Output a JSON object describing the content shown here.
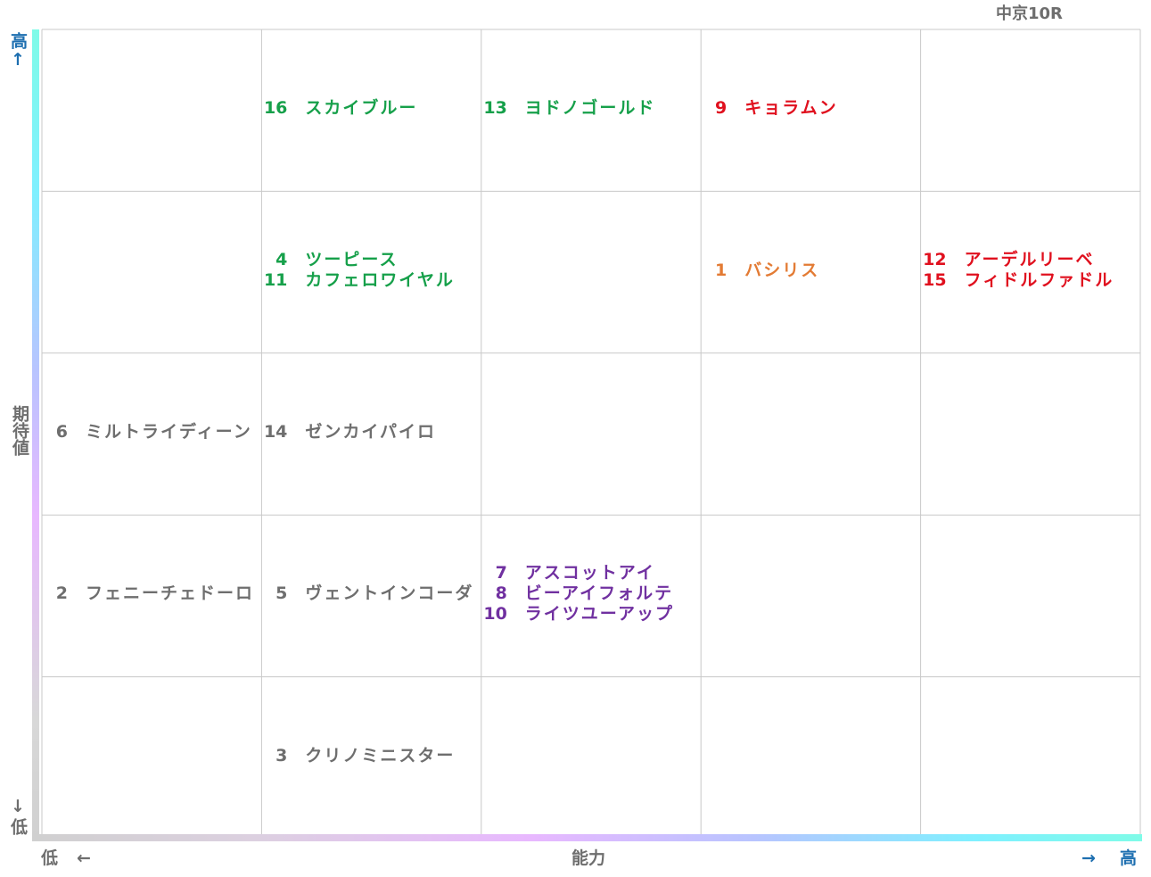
{
  "title": "中京10R",
  "y_axis": {
    "high": "高",
    "high_arrow": "↑",
    "label": "期待値",
    "low_arrow": "↓",
    "low": "低"
  },
  "x_axis": {
    "low": "低",
    "low_arrow": "←",
    "label": "能力",
    "high_arrow": "→",
    "high": "高"
  },
  "grid": {
    "rows": [
      [
        [],
        [
          {
            "number": 16,
            "name": "スカイブルー",
            "color": "#16a04a"
          }
        ],
        [
          {
            "number": 13,
            "name": "ヨドノゴールド",
            "color": "#16a04a"
          }
        ],
        [
          {
            "number": 9,
            "name": "キョラムン",
            "color": "#e0101e"
          }
        ],
        []
      ],
      [
        [],
        [
          {
            "number": 4,
            "name": "ツーピース",
            "color": "#16a04a"
          },
          {
            "number": 11,
            "name": "カフェロワイヤル",
            "color": "#16a04a"
          }
        ],
        [],
        [
          {
            "number": 1,
            "name": "バシリス",
            "color": "#e37b34"
          }
        ],
        [
          {
            "number": 12,
            "name": "アーデルリーベ",
            "color": "#e0101e"
          },
          {
            "number": 15,
            "name": "フィドルファドル",
            "color": "#e0101e"
          }
        ]
      ],
      [
        [
          {
            "number": 6,
            "name": "ミルトライディーン",
            "color": "#6e6e6e"
          }
        ],
        [
          {
            "number": 14,
            "name": "ゼンカイパイロ",
            "color": "#6e6e6e"
          }
        ],
        [],
        [],
        []
      ],
      [
        [
          {
            "number": 2,
            "name": "フェニーチェドーロ",
            "color": "#6e6e6e"
          }
        ],
        [
          {
            "number": 5,
            "name": "ヴェントインコーダ",
            "color": "#6e6e6e"
          }
        ],
        [
          {
            "number": 7,
            "name": "アスコットアイ",
            "color": "#7030a0"
          },
          {
            "number": 8,
            "name": "ビーアイフォルテ",
            "color": "#7030a0"
          },
          {
            "number": 10,
            "name": "ライツユーアップ",
            "color": "#7030a0"
          }
        ],
        [],
        []
      ],
      [
        [],
        [
          {
            "number": 3,
            "name": "クリノミニスター",
            "color": "#6e6e6e"
          }
        ],
        [],
        [],
        []
      ]
    ]
  }
}
